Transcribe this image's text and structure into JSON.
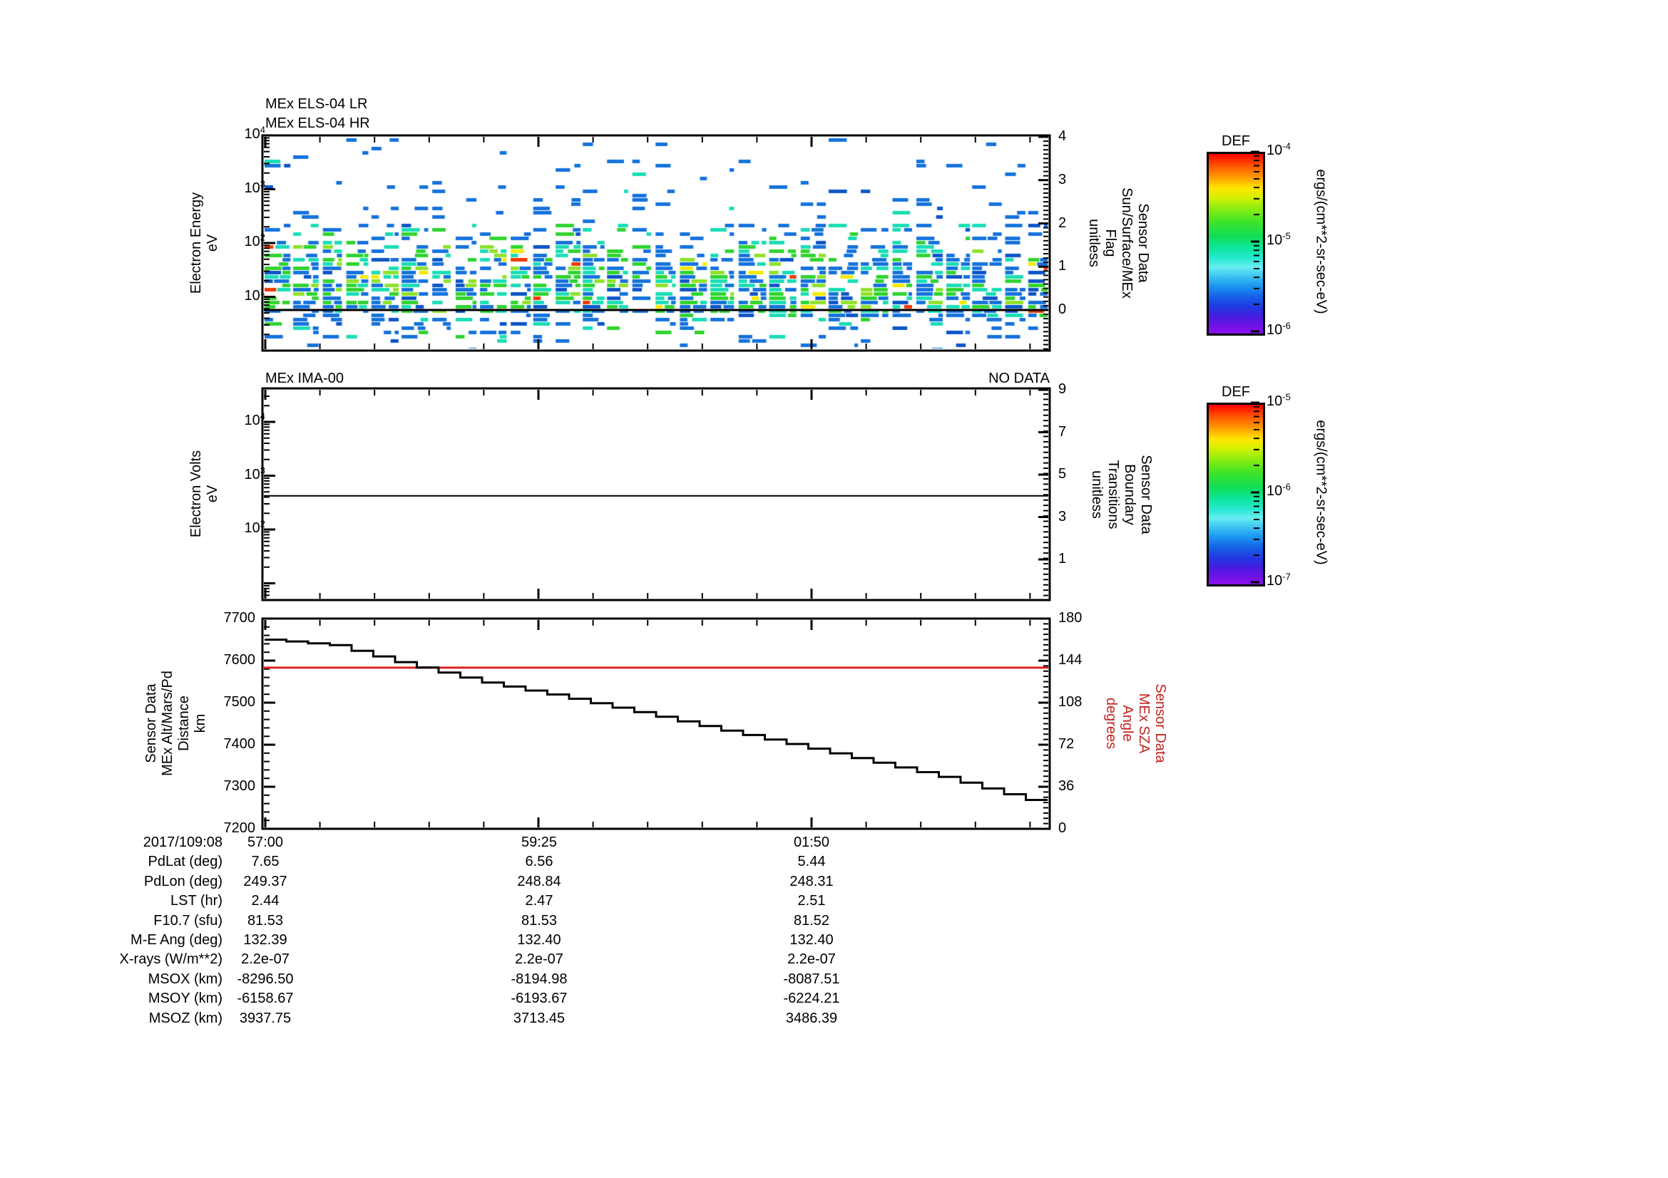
{
  "colors": {
    "background": "#ffffff",
    "axis": "#000000",
    "red_line": "#dd2222",
    "red_text": "#c42420",
    "spectrogram_palette": [
      "#1472dc",
      "#0b55c8",
      "#19ddb6",
      "#2fd42f",
      "#8ee228",
      "#f2ea00",
      "#f03800"
    ]
  },
  "panels": {
    "els": {
      "titles": [
        "MEx ELS-04 LR",
        "MEx ELS-04 HR"
      ],
      "left_axis": {
        "label_lines": [
          "Electron Energy",
          "eV"
        ],
        "tick_exponents": [
          4,
          3,
          2,
          1
        ],
        "scale": "log"
      },
      "right_axis": {
        "label_lines": [
          "Sensor Data",
          "Sun/Surface/MEx",
          "Flag",
          "unitless"
        ],
        "ticks": [
          4,
          3,
          2,
          1,
          0
        ]
      },
      "flag_line_value": 0
    },
    "ima": {
      "title": "MEx IMA-00",
      "no_data": "NO DATA",
      "left_axis": {
        "label_lines": [
          "Electron Volts",
          "eV"
        ],
        "tick_exponents": [
          4,
          3,
          2
        ],
        "scale": "log"
      },
      "right_axis": {
        "label_lines": [
          "Sensor Data",
          "Boundary",
          "Transitions",
          "unitless"
        ],
        "ticks": [
          9,
          7,
          5,
          3,
          1
        ]
      },
      "boundary_line_value": 4
    },
    "alt": {
      "left_axis": {
        "label_lines": [
          "Sensor Data",
          "MEx Alt/Mars/Pd",
          "Distance",
          "km"
        ],
        "ticks": [
          7700,
          7600,
          7500,
          7400,
          7300,
          7200
        ]
      },
      "right_axis": {
        "label_lines": [
          "Sensor Data",
          "MEx SZA",
          "Angle",
          "degrees"
        ],
        "ticks": [
          180,
          144,
          108,
          72,
          36,
          0
        ]
      },
      "sza_red_line_value": 138
    }
  },
  "colorbars": [
    {
      "title": "DEF",
      "tick_exponents": [
        -4,
        -5,
        -6
      ],
      "unit": "ergs/(cm**2-sr-sec-eV)"
    },
    {
      "title": "DEF",
      "tick_exponents": [
        -5,
        -6,
        -7
      ],
      "unit": "ergs/(cm**2-sr-sec-eV)"
    }
  ],
  "table": {
    "date_label": "2017/109:08",
    "rows": [
      {
        "label": "2017/109:08",
        "values": [
          "57:00",
          "59:25",
          "01:50"
        ]
      },
      {
        "label": "PdLat (deg)",
        "values": [
          "7.65",
          "6.56",
          "5.44"
        ]
      },
      {
        "label": "PdLon (deg)",
        "values": [
          "249.37",
          "248.84",
          "248.31"
        ]
      },
      {
        "label": "LST (hr)",
        "values": [
          "2.44",
          "2.47",
          "2.51"
        ]
      },
      {
        "label": "F10.7 (sfu)",
        "values": [
          "81.53",
          "81.53",
          "81.52"
        ]
      },
      {
        "label": "M-E Ang (deg)",
        "values": [
          "132.39",
          "132.40",
          "132.40"
        ]
      },
      {
        "label": "X-rays (W/m**2)",
        "values": [
          "2.2e-07",
          "2.2e-07",
          "2.2e-07"
        ]
      },
      {
        "label": "MSOX (km)",
        "values": [
          "-8296.50",
          "-8194.98",
          "-8087.51"
        ]
      },
      {
        "label": "MSOY (km)",
        "values": [
          "-6158.67",
          "-6193.67",
          "-6224.21"
        ]
      },
      {
        "label": "MSOZ (km)",
        "values": [
          "3937.75",
          "3713.45",
          "3486.39"
        ]
      }
    ]
  },
  "chart_data": [
    {
      "type": "heatmap",
      "title": "MEx ELS-04 LR / MEx ELS-04 HR electron energy spectrogram",
      "ylabel": "Electron Energy eV",
      "yscale": "log",
      "ylim": [
        1,
        10000
      ],
      "x_tick_labels": [
        "57:00",
        "59:25",
        "01:50"
      ],
      "x_date": "2017/109:08",
      "colorbar": {
        "title": "DEF",
        "unit": "ergs/(cm**2-sr-sec-eV)",
        "min": 1e-06,
        "max": 0.0001,
        "scale": "log"
      },
      "right_axis": {
        "name": "Sensor Data Sun/Surface/MEx Flag unitless",
        "ticks": [
          0,
          1,
          2,
          3,
          4
        ],
        "flag_line_at": 0
      },
      "content_summary": "Dense blue/cyan/green flux band between ~5 and 100 eV (~1e-5 level), sparse blue specks up to 10 keV, periodic vertical white data gaps, horizontal black flag=0 line near 6 eV"
    },
    {
      "type": "line",
      "title": "MEx IMA-00",
      "annotation": "NO DATA",
      "ylabel": "Electron Volts eV",
      "yscale": "log",
      "ylim": [
        5,
        40000
      ],
      "series": [
        {
          "name": "Sensor Data Boundary Transitions unitless",
          "axis": "right",
          "right_ticks": [
            1,
            3,
            5,
            7,
            9
          ],
          "constant_value": 4
        }
      ]
    },
    {
      "type": "line",
      "ylabel": "Sensor Data MEx Alt/Mars/Pd Distance km",
      "ylim": [
        7200,
        7700
      ],
      "x_tick_labels": [
        "57:00",
        "59:25",
        "01:50"
      ],
      "series": [
        {
          "name": "MEx Alt/Mars/Pd Distance (km)",
          "style": "staircase",
          "color": "#000000",
          "n_steps": 36,
          "points_frac_alt": [
            [
              0,
              7652
            ],
            [
              0.097,
              7637
            ],
            [
              0.194,
              7590
            ],
            [
              0.291,
              7548
            ],
            [
              0.388,
              7515
            ],
            [
              0.485,
              7478
            ],
            [
              0.583,
              7439
            ],
            [
              0.68,
              7402
            ],
            [
              0.777,
              7363
            ],
            [
              0.874,
              7324
            ],
            [
              0.971,
              7276
            ],
            [
              1.0,
              7262
            ]
          ]
        },
        {
          "name": "MEx SZA Angle (degrees)",
          "axis": "right",
          "right_ticks": [
            0,
            36,
            72,
            108,
            144,
            180
          ],
          "constant_value": 138,
          "color": "#dd2222"
        }
      ]
    }
  ]
}
